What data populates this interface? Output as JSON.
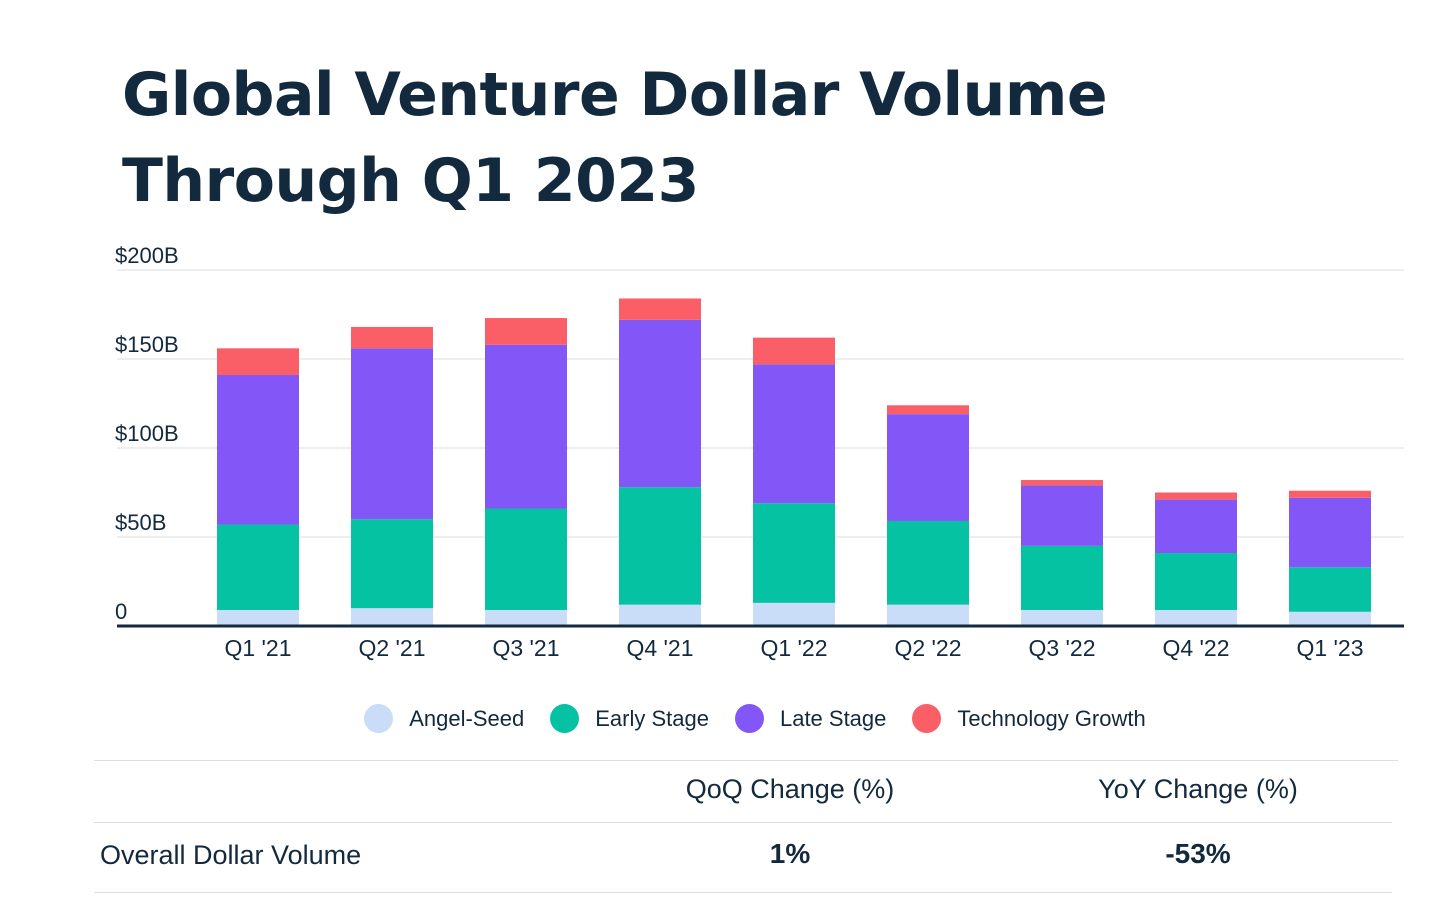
{
  "page": {
    "title": "Global Venture Dollar Volume Through Q1 2023"
  },
  "chart_data": {
    "type": "bar",
    "stacked": true,
    "categories": [
      "Q1 '21",
      "Q2 '21",
      "Q3 '21",
      "Q4 '21",
      "Q1 '22",
      "Q2 '22",
      "Q3 '22",
      "Q4 '22",
      "Q1 '23"
    ],
    "series": [
      {
        "name": "Angel-Seed",
        "color": "#c9dcf8",
        "values": [
          9,
          10,
          9,
          12,
          13,
          12,
          9,
          9,
          8
        ]
      },
      {
        "name": "Early Stage",
        "color": "#05c2a2",
        "values": [
          48,
          50,
          57,
          66,
          56,
          47,
          36,
          32,
          25
        ]
      },
      {
        "name": "Late Stage",
        "color": "#8356f7",
        "values": [
          84,
          96,
          92,
          94,
          78,
          60,
          34,
          30,
          39
        ]
      },
      {
        "name": "Technology Growth",
        "color": "#fa5e66",
        "values": [
          15,
          12,
          15,
          12,
          15,
          5,
          3,
          4,
          4
        ]
      }
    ],
    "ylim": [
      0,
      200
    ],
    "y_ticks": [
      {
        "value": 0,
        "label": "0"
      },
      {
        "value": 50,
        "label": "$50B"
      },
      {
        "value": 100,
        "label": "$100B"
      },
      {
        "value": 150,
        "label": "$150B"
      },
      {
        "value": 200,
        "label": "$200B"
      }
    ],
    "grid": true,
    "legend_position": "bottom"
  },
  "summary_table": {
    "columns": [
      "QoQ Change (%)",
      "YoY Change (%)"
    ],
    "row_label": "Overall Dollar Volume",
    "values": [
      "1%",
      "-53%"
    ]
  }
}
